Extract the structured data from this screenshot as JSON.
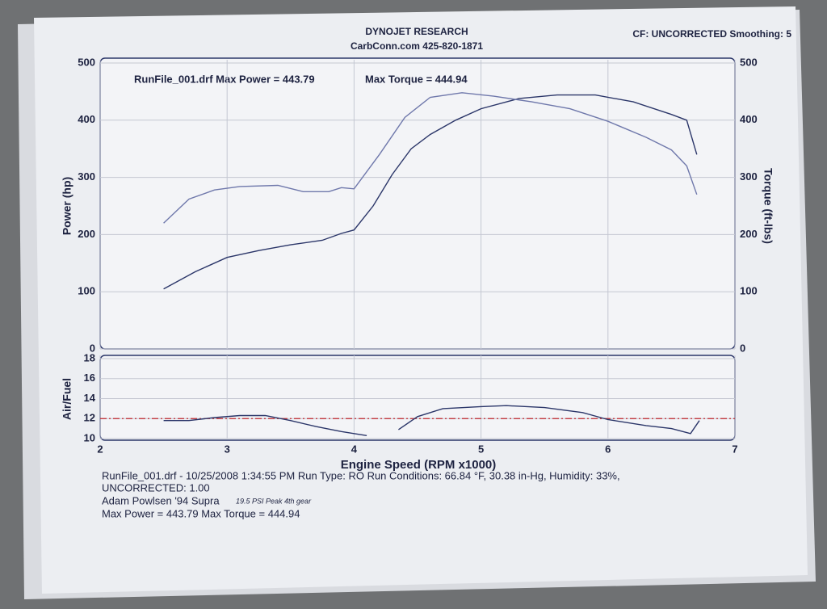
{
  "header": {
    "title": "DYNOJET RESEARCH",
    "subtitle": "CarbConn.com 425-820-1871",
    "settings": "CF: UNCORRECTED  Smoothing: 5"
  },
  "chart_data": [
    {
      "type": "line",
      "annotations": [
        "RunFile_001.drf Max Power = 443.79",
        "Max Torque = 444.94"
      ],
      "y_label": "Power (hp)",
      "y2_label": "Torque (ft-lbs)",
      "xlim": [
        2,
        7
      ],
      "xticks": [
        2,
        3,
        4,
        5,
        6,
        7
      ],
      "ylim": [
        0,
        500
      ],
      "yticks": [
        0,
        100,
        200,
        300,
        400,
        500
      ],
      "y2lim": [
        0,
        500
      ],
      "y2ticks": [
        0,
        100,
        200,
        300,
        400,
        500
      ],
      "grid": true,
      "series": [
        {
          "name": "Power",
          "color": "#2b3669",
          "axis": "y",
          "x": [
            2.5,
            2.75,
            3,
            3.25,
            3.5,
            3.75,
            3.9,
            4,
            4.15,
            4.3,
            4.45,
            4.6,
            4.8,
            5,
            5.3,
            5.6,
            5.9,
            6.2,
            6.5,
            6.62,
            6.7
          ],
          "values": [
            105,
            135,
            160,
            172,
            182,
            190,
            202,
            208,
            250,
            305,
            350,
            375,
            400,
            420,
            438,
            444,
            444,
            432,
            410,
            400,
            340
          ]
        },
        {
          "name": "Torque",
          "color": "#6f78ab",
          "axis": "y2",
          "x": [
            2.5,
            2.7,
            2.9,
            3.1,
            3.4,
            3.6,
            3.8,
            3.9,
            4,
            4.2,
            4.4,
            4.6,
            4.85,
            5.1,
            5.4,
            5.7,
            6,
            6.3,
            6.5,
            6.62,
            6.7
          ],
          "values": [
            220,
            262,
            278,
            284,
            286,
            275,
            275,
            282,
            280,
            340,
            405,
            440,
            448,
            442,
            432,
            420,
            398,
            370,
            348,
            320,
            270
          ]
        }
      ]
    },
    {
      "type": "line",
      "y_label": "Air/Fuel",
      "x_label": "Engine Speed (RPM x1000)",
      "xlim": [
        2,
        7
      ],
      "xticks": [
        2,
        3,
        4,
        5,
        6,
        7
      ],
      "ylim": [
        10,
        18
      ],
      "yticks": [
        10,
        12,
        14,
        16,
        18
      ],
      "grid": true,
      "reference_line": 12,
      "reference_color": "#c0282d",
      "series": [
        {
          "name": "Air/Fuel",
          "color": "#2b3669",
          "x": [
            2.5,
            2.7,
            2.9,
            3.1,
            3.3,
            3.5,
            3.7,
            3.9,
            4.1,
            4.2,
            4.35,
            4.5,
            4.7,
            5.0,
            5.2,
            5.5,
            5.8,
            6.0,
            6.3,
            6.5,
            6.65,
            6.72
          ],
          "values": [
            11.8,
            11.8,
            12.1,
            12.3,
            12.3,
            11.8,
            11.2,
            10.7,
            10.3,
            null,
            10.9,
            12.2,
            13.0,
            13.2,
            13.3,
            13.1,
            12.6,
            11.9,
            11.3,
            11.0,
            10.5,
            11.8
          ]
        }
      ]
    }
  ],
  "footer": {
    "lines": [
      "RunFile_001.drf - 10/25/2008 1:34:55 PM   Run Type: RO  Run Conditions: 66.84 °F, 30.38 in-Hg,  Humidity:  33%,",
      "UNCORRECTED: 1.00",
      "Adam Powlsen '94 Supra",
      "Max Power = 443.79  Max Torque = 444.94"
    ],
    "handwritten": "19.5 PSI Peak 4th gear"
  }
}
